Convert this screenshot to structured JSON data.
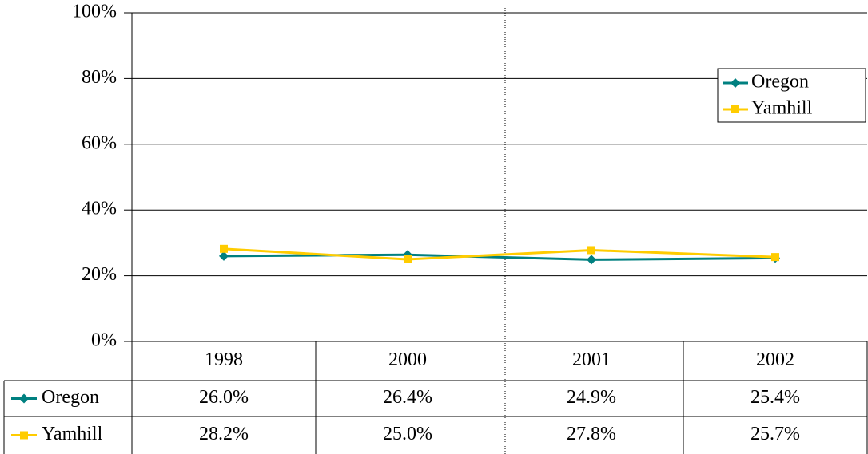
{
  "chart_data": {
    "type": "line",
    "categories": [
      "1998",
      "2000",
      "2001",
      "2002"
    ],
    "series": [
      {
        "name": "Oregon",
        "color": "#008080",
        "marker": "diamond",
        "values": [
          26.0,
          26.4,
          24.9,
          25.4
        ],
        "value_labels": [
          "26.0%",
          "26.4%",
          "24.9%",
          "25.4%"
        ]
      },
      {
        "name": "Yamhill",
        "color": "#FFCC00",
        "marker": "square",
        "values": [
          28.2,
          25.0,
          27.8,
          25.7
        ],
        "value_labels": [
          "28.2%",
          "25.0%",
          "27.8%",
          "25.7%"
        ]
      }
    ],
    "ylim": [
      0,
      100
    ],
    "yticks": [
      {
        "value": 0,
        "label": "0%"
      },
      {
        "value": 20,
        "label": "20%"
      },
      {
        "value": 40,
        "label": "40%"
      },
      {
        "value": 60,
        "label": "60%"
      },
      {
        "value": 80,
        "label": "80%"
      },
      {
        "value": 100,
        "label": "100%"
      }
    ],
    "grid": true,
    "legend": "upper right",
    "data_table": true
  }
}
